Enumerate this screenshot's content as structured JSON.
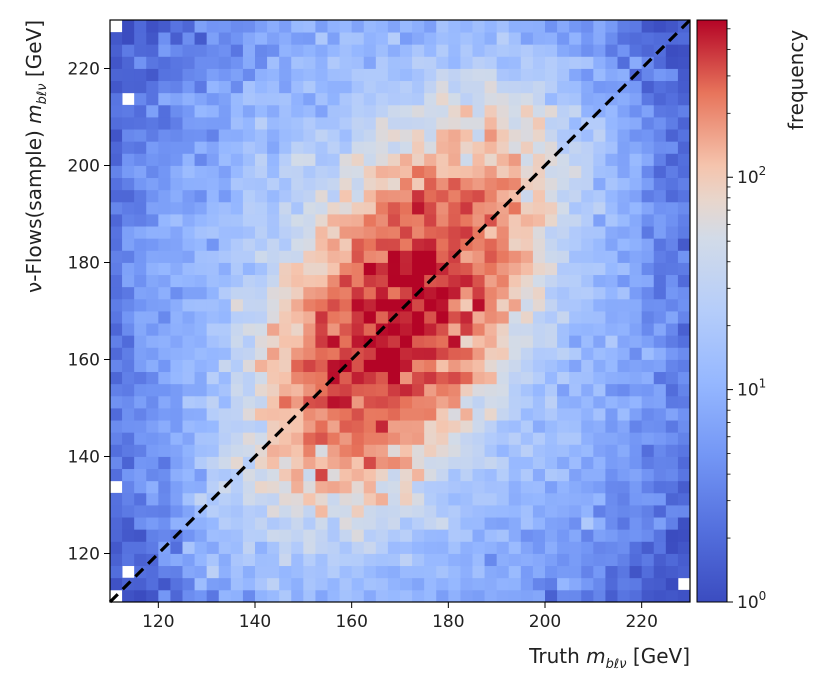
{
  "chart_data": {
    "type": "heatmap",
    "title": "",
    "xlabel": {
      "prefix": "Truth ",
      "var": "m",
      "sub": "bℓν",
      "unit": " [GeV]"
    },
    "ylabel": {
      "prefix": "ν-Flows(sample) ",
      "var": "m",
      "sub": "bℓν",
      "unit": " [GeV]"
    },
    "xlim": [
      110,
      230
    ],
    "ylim": [
      110,
      230
    ],
    "x_ticks": [
      120,
      140,
      160,
      180,
      200,
      220
    ],
    "y_ticks": [
      120,
      140,
      160,
      180,
      200,
      220
    ],
    "x_tick_labels": [
      "120",
      "140",
      "160",
      "180",
      "200",
      "220"
    ],
    "y_tick_labels": [
      "120",
      "140",
      "160",
      "180",
      "200",
      "220"
    ],
    "bin_width": 2.5,
    "n_bins": 48,
    "peak": {
      "x": 172,
      "y": 172,
      "approx_frequency": 500
    },
    "colormap": "coolwarm",
    "color_scale": "log",
    "color_range": [
      1,
      550
    ],
    "colorbar": {
      "label": "frequency",
      "ticks": [
        1,
        10,
        100
      ],
      "tick_labels": [
        {
          "base": "10",
          "exp": "0"
        },
        {
          "base": "10",
          "exp": "1"
        },
        {
          "base": "10",
          "exp": "2"
        }
      ]
    },
    "diagonal_reference": {
      "style": "dashed",
      "color": "#000000",
      "from": [
        110,
        110
      ],
      "to": [
        230,
        230
      ]
    },
    "grid": false
  }
}
